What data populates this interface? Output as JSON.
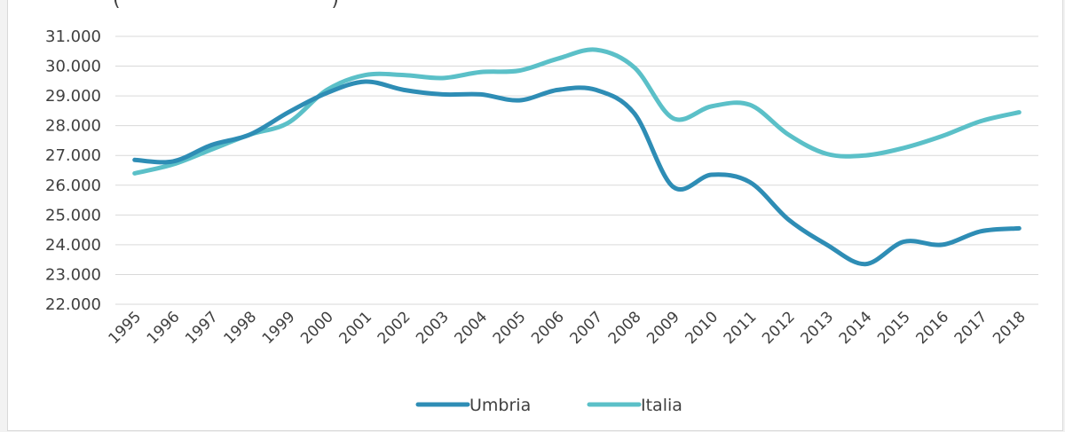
{
  "title_fragment": "(                                  )",
  "chart_data": {
    "type": "line",
    "x": [
      "1995",
      "1996",
      "1997",
      "1998",
      "1999",
      "2000",
      "2001",
      "2002",
      "2003",
      "2004",
      "2005",
      "2006",
      "2007",
      "2008",
      "2009",
      "2010",
      "2011",
      "2012",
      "2013",
      "2014",
      "2015",
      "2016",
      "2017",
      "2018"
    ],
    "y_ticks": [
      "22.000",
      "23.000",
      "24.000",
      "25.000",
      "26.000",
      "27.000",
      "28.000",
      "29.000",
      "30.000",
      "31.000"
    ],
    "ylim": [
      22000,
      31000
    ],
    "grid": true,
    "legend_position": "bottom",
    "series": [
      {
        "name": "Umbria",
        "color": "#2e8db5",
        "values": [
          26850,
          26800,
          27350,
          27700,
          28450,
          29100,
          29480,
          29200,
          29050,
          29050,
          28850,
          29200,
          29200,
          28400,
          25950,
          26350,
          26100,
          24850,
          24000,
          23350,
          24100,
          24000,
          24450,
          24550
        ]
      },
      {
        "name": "Italia",
        "color": "#5bc0c8",
        "values": [
          26400,
          26700,
          27200,
          27700,
          28100,
          29200,
          29700,
          29700,
          29600,
          29800,
          29850,
          30250,
          30550,
          29950,
          28250,
          28650,
          28700,
          27700,
          27050,
          27000,
          27250,
          27650,
          28150,
          28450
        ]
      }
    ]
  }
}
